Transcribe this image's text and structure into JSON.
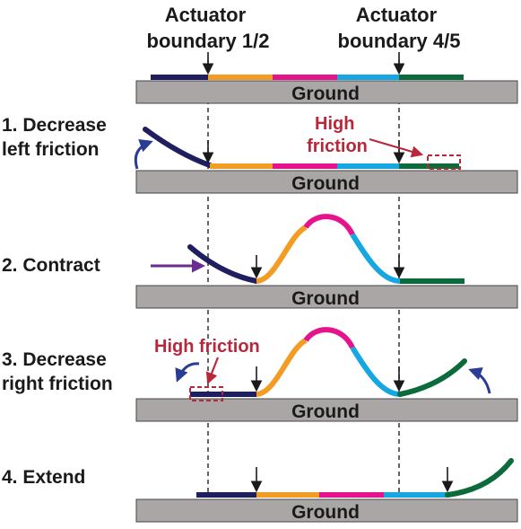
{
  "headers": {
    "boundary_left": [
      "Actuator",
      "boundary 1/2"
    ],
    "boundary_right": [
      "Actuator",
      "boundary 4/5"
    ]
  },
  "ground_label": "Ground",
  "steps": {
    "s1": [
      "1. Decrease",
      "left friction"
    ],
    "s2": [
      "2. Contract"
    ],
    "s3": [
      "3. Decrease",
      "right friction"
    ],
    "s4": [
      "4. Extend"
    ]
  },
  "annotations": {
    "high_friction_1": [
      "High",
      "friction"
    ],
    "high_friction_3": "High friction"
  },
  "colors": {
    "seg1": "#1f1e5f",
    "seg2": "#f39c23",
    "seg3": "#e6148c",
    "seg4": "#16a6e2",
    "seg5": "#0b6b3a",
    "ground": "#aaa6a6",
    "highlight": "#b8283a",
    "contract_arrow": "#6b2b8f",
    "curl_arrow": "#2b3c94"
  }
}
